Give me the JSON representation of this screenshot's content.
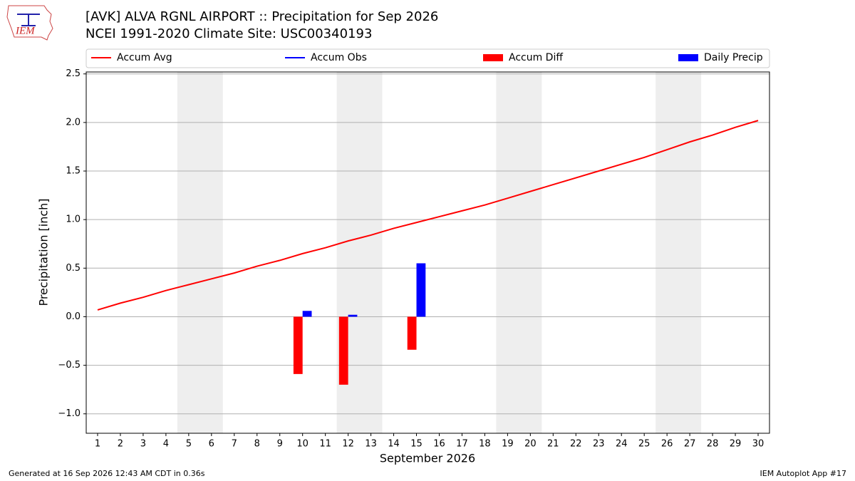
{
  "chart_data": {
    "type": "bar",
    "title": "[AVK] ALVA RGNL AIRPORT :: Precipitation for Sep 2026",
    "subtitle": "NCEI 1991-2020 Climate Site: USC00340193",
    "logo": "IEM",
    "x_label": "September 2026",
    "y_label": "Precipitation [inch]",
    "x": [
      1,
      2,
      3,
      4,
      5,
      6,
      7,
      8,
      9,
      10,
      11,
      12,
      13,
      14,
      15,
      16,
      17,
      18,
      19,
      20,
      21,
      22,
      23,
      24,
      25,
      26,
      27,
      28,
      29,
      30
    ],
    "xlim": [
      0.5,
      30.5
    ],
    "xticks": [
      1,
      2,
      3,
      4,
      5,
      6,
      7,
      8,
      9,
      10,
      11,
      12,
      13,
      14,
      15,
      16,
      17,
      18,
      19,
      20,
      21,
      22,
      23,
      24,
      25,
      26,
      27,
      28,
      29,
      30
    ],
    "ylim": [
      -1.2,
      2.52
    ],
    "yticks": [
      {
        "value": -1,
        "label": "−1.0"
      },
      {
        "value": -0.5,
        "label": "−0.5"
      },
      {
        "value": 0,
        "label": "0.0"
      },
      0.5,
      {
        "value": 1,
        "label": "1.0"
      },
      1.5,
      {
        "value": 2,
        "label": "2.0"
      },
      2.5
    ],
    "grid": true,
    "weekend_spans": [
      [
        4.5,
        6.5
      ],
      [
        11.5,
        13.5
      ],
      [
        18.5,
        20.5
      ],
      [
        25.5,
        27.5
      ]
    ],
    "series": [
      {
        "name": "Accum Avg",
        "color": "#ff0000",
        "kind": "line",
        "values": [
          0.07,
          0.14,
          0.2,
          0.27,
          0.33,
          0.39,
          0.45,
          0.52,
          0.58,
          0.65,
          0.71,
          0.78,
          0.84,
          0.91,
          0.97,
          1.03,
          1.09,
          1.15,
          1.22,
          1.29,
          1.36,
          1.43,
          1.5,
          1.57,
          1.64,
          1.72,
          1.8,
          1.87,
          1.95,
          2.02
        ]
      },
      {
        "name": "Accum Obs",
        "color": "#0000ff",
        "kind": "line",
        "values": [
          null,
          null,
          null,
          null,
          null,
          null,
          null,
          null,
          null,
          null,
          null,
          null,
          null,
          null,
          null,
          null,
          null,
          null,
          null,
          null,
          null,
          null,
          null,
          null,
          null,
          null,
          null,
          null,
          null,
          null
        ]
      },
      {
        "name": "Accum Diff",
        "color": "#ff0000",
        "kind": "bar",
        "offset": -0.2,
        "values": [
          null,
          null,
          null,
          null,
          null,
          null,
          null,
          null,
          null,
          -0.59,
          null,
          -0.7,
          null,
          null,
          -0.34,
          null,
          null,
          null,
          null,
          null,
          null,
          null,
          null,
          null,
          null,
          null,
          null,
          null,
          null,
          null
        ]
      },
      {
        "name": "Daily Precip",
        "color": "#0000ff",
        "kind": "bar",
        "offset": 0.2,
        "values": [
          null,
          null,
          null,
          null,
          null,
          null,
          null,
          null,
          null,
          0.06,
          null,
          0.02,
          null,
          null,
          0.55,
          null,
          null,
          null,
          null,
          null,
          null,
          null,
          null,
          null,
          null,
          null,
          null,
          null,
          null,
          null
        ]
      }
    ],
    "footer_left": "Generated at 16 Sep 2026 12:43 AM CDT in 0.36s",
    "footer_right": "IEM Autoplot App #17"
  }
}
